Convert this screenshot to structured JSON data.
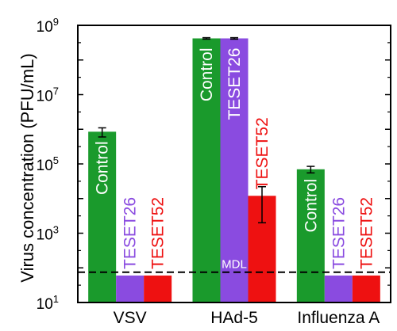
{
  "chart_data": {
    "type": "bar",
    "ylabel": "Virus concentration (PFU/mL)",
    "yscale": "log",
    "ylim": [
      10,
      1000000000
    ],
    "yticks": [
      {
        "base": "10",
        "exp": "1"
      },
      {
        "base": "10",
        "exp": "3"
      },
      {
        "base": "10",
        "exp": "5"
      },
      {
        "base": "10",
        "exp": "7"
      },
      {
        "base": "10",
        "exp": "9"
      }
    ],
    "categories": [
      "VSV",
      "HAd-5",
      "Influenza A"
    ],
    "series": [
      {
        "name": "Control",
        "color": "#1a9a2c",
        "values": [
          850000,
          420000000,
          70000
        ],
        "errors": [
          250000,
          20000000,
          15000
        ]
      },
      {
        "name": "TESET26",
        "color": "#8a4be0",
        "values": [
          60,
          420000000,
          60
        ],
        "errors": [
          null,
          20000000,
          null
        ]
      },
      {
        "name": "TESET52",
        "color": "#ee1111",
        "values": [
          60,
          12000,
          60
        ],
        "errors": [
          null,
          10000,
          null
        ]
      }
    ],
    "reference_line": {
      "label": "MDL",
      "value": 75,
      "style": "dashed"
    }
  }
}
